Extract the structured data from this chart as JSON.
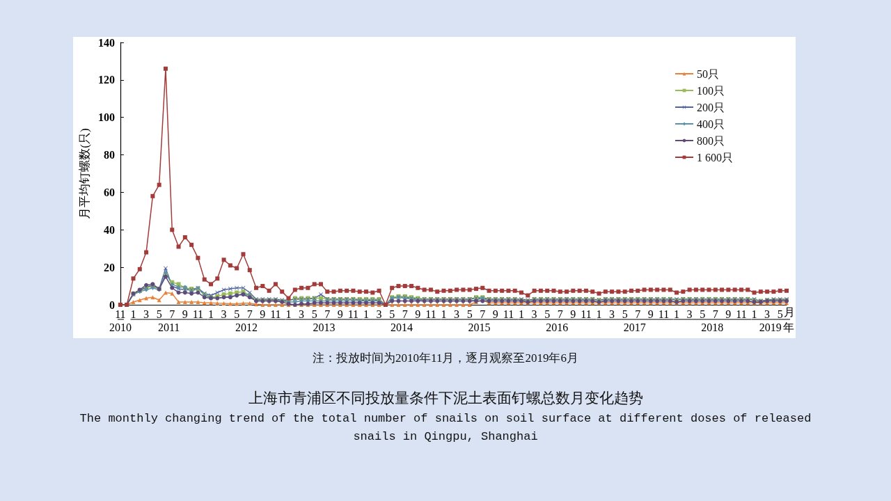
{
  "chart_data": {
    "type": "line",
    "title": "上海市青浦区不同投放量条件下泥土表面钉螺总数月变化趋势",
    "subtitle": "The monthly changing trend of the total number of snails on soil surface at different doses of released snails in Qingpu, Shanghai",
    "ylabel": "月平均钉螺数(只)",
    "xlabel": "月",
    "annotations": [
      "2010",
      "2011",
      "2012",
      "2013",
      "2014",
      "2015",
      "2016",
      "2017",
      "2018",
      "2019",
      "年",
      "注：投放时间为2010年11月，逐月观察至2019年6月"
    ],
    "categories": [
      "11",
      null,
      "1",
      null,
      "3",
      null,
      "5",
      null,
      "7",
      null,
      "9",
      null,
      "11",
      null,
      "1",
      null,
      "3",
      null,
      "5",
      null,
      "7",
      null,
      "9",
      null,
      "11",
      null,
      "1",
      null,
      "3",
      null,
      "5",
      null,
      "7",
      null,
      "9",
      null,
      "11",
      null,
      "1",
      null,
      "3",
      null,
      "5",
      null,
      "7",
      null,
      "9",
      null,
      "11",
      null,
      "1",
      null,
      "3",
      null,
      "5",
      null,
      "7",
      null,
      "9",
      null,
      "11",
      null,
      "1",
      null,
      "3",
      null,
      "5",
      null,
      "7",
      null,
      "9",
      null,
      "11",
      null,
      "1",
      null,
      "3",
      null,
      "5",
      null,
      "7",
      null,
      "9",
      null,
      "11",
      null,
      "1",
      null,
      "3",
      null,
      "5",
      null,
      "7",
      null,
      "9",
      null,
      "11",
      null,
      "1",
      null,
      "3",
      null,
      "5",
      null
    ],
    "series": [
      {
        "name": "50只",
        "color": "#e8823a",
        "marker": "triangle",
        "values": [
          0,
          0,
          1.5,
          2.5,
          3.5,
          4,
          2.5,
          6.5,
          6,
          1.5,
          1.5,
          1.5,
          1.5,
          1,
          1,
          0.8,
          0.7,
          0.6,
          0.6,
          0.8,
          0.8,
          0.3,
          0,
          0,
          0,
          0,
          0,
          0,
          0,
          0,
          0,
          0,
          0,
          0,
          0,
          0,
          0,
          0,
          0,
          0,
          0,
          0,
          0,
          0,
          0,
          0,
          0,
          0,
          0,
          0,
          0,
          0,
          0,
          0,
          0,
          1.5,
          2.5,
          1,
          1,
          1,
          1,
          1,
          1,
          1,
          1,
          1,
          1,
          1,
          1,
          1,
          1,
          1,
          1,
          1,
          1,
          1,
          1,
          1,
          1,
          1,
          1,
          1,
          1,
          1,
          1,
          1,
          1,
          1,
          1,
          1,
          1,
          1,
          1,
          1,
          1,
          1,
          1,
          1,
          1,
          1,
          1,
          1,
          1,
          1
        ]
      },
      {
        "name": "100只",
        "color": "#9bbb59",
        "marker": "square",
        "values": [
          0,
          0,
          6,
          7.5,
          9,
          10,
          8.5,
          16,
          12,
          11,
          9,
          8.5,
          8.5,
          5.5,
          4,
          4.5,
          5.5,
          6,
          6.5,
          7,
          5,
          2.5,
          2.5,
          2.5,
          2.5,
          2,
          2,
          3.5,
          3.5,
          3.5,
          3.5,
          3.5,
          3,
          3,
          3,
          3,
          3,
          3,
          3,
          3,
          3,
          0,
          4,
          4.5,
          4.5,
          4,
          3.5,
          3,
          3,
          3,
          3,
          3,
          3,
          3,
          3,
          4,
          4,
          3,
          3,
          3,
          3,
          3,
          2.5,
          2,
          3,
          3,
          3,
          3,
          3,
          3,
          3,
          3,
          3,
          3,
          2.5,
          3,
          3,
          3,
          3,
          3,
          3,
          3,
          3,
          3,
          3,
          3,
          2.5,
          3,
          3,
          3,
          3,
          3,
          3,
          3,
          3,
          3,
          3,
          3,
          2.5,
          2,
          2.5,
          2.5,
          2.5,
          2.5
        ]
      },
      {
        "name": "200只",
        "color": "#4f64a0",
        "marker": "cross",
        "values": [
          0,
          0,
          5.5,
          7.5,
          9.5,
          10.5,
          8.5,
          19.5,
          10,
          8.5,
          8,
          8,
          9,
          6,
          5,
          6.5,
          8,
          8.5,
          9,
          9,
          6.5,
          3,
          3,
          3,
          3,
          2.5,
          2.5,
          3,
          3,
          3,
          3.5,
          5.5,
          3,
          3,
          3,
          3,
          3,
          2.5,
          2.5,
          2.5,
          2.5,
          0,
          3.5,
          4,
          4,
          3.5,
          3,
          3,
          3,
          3,
          3,
          3,
          3,
          3,
          3,
          3.5,
          3.5,
          3,
          3,
          3,
          3,
          3,
          3,
          2.5,
          3,
          3,
          3,
          3,
          3,
          3,
          3,
          3,
          3,
          3,
          2.5,
          3,
          3,
          3,
          3,
          3,
          3,
          3,
          3,
          3,
          3,
          3,
          3,
          3,
          3,
          3,
          3,
          3,
          3,
          3,
          3,
          3,
          3,
          3,
          3,
          2,
          2.5,
          3,
          3,
          3
        ]
      },
      {
        "name": "400只",
        "color": "#5a93a8",
        "marker": "diamond",
        "values": [
          0,
          0,
          5.5,
          7,
          8,
          9,
          8,
          17,
          11,
          9.5,
          9.5,
          7,
          9,
          5,
          4,
          3.5,
          4,
          4.5,
          5,
          6,
          5,
          2,
          2,
          2,
          2,
          2,
          1.5,
          1.5,
          2,
          2,
          2,
          2,
          2,
          2,
          2,
          2,
          2,
          2,
          2,
          2,
          2,
          0,
          3.5,
          4,
          3.5,
          3,
          2.5,
          2,
          2,
          2,
          2,
          2,
          2,
          2,
          2,
          2.5,
          3.5,
          2,
          2,
          2,
          2,
          2,
          2,
          1.5,
          2,
          2,
          2,
          2,
          2,
          2,
          2,
          2,
          2,
          2,
          1.5,
          2,
          2,
          2,
          2,
          2,
          2,
          2,
          2,
          2,
          2,
          2,
          1.5,
          2,
          2,
          2,
          2,
          2,
          2,
          2,
          2,
          2,
          2,
          2,
          1.5,
          1.5,
          2,
          2,
          2,
          2
        ]
      },
      {
        "name": "800只",
        "color": "#5f4a7a",
        "marker": "circle",
        "values": [
          0,
          0,
          6,
          8,
          10.5,
          11,
          8.5,
          15,
          9,
          6.5,
          6.5,
          6,
          6.5,
          4,
          3.5,
          3.5,
          4,
          4,
          5,
          5.5,
          4,
          2,
          2,
          2,
          2,
          1.5,
          0.5,
          0,
          0.5,
          0.5,
          1,
          1,
          1,
          1,
          1,
          1,
          1,
          1,
          1,
          1,
          1,
          0,
          2,
          2,
          2,
          2,
          2,
          2,
          2,
          2,
          2,
          2,
          2,
          2,
          2,
          2,
          2,
          2,
          2,
          2,
          2,
          2,
          2,
          1.5,
          2,
          2,
          2,
          2,
          2,
          2,
          2,
          2,
          2,
          2,
          1.5,
          2,
          2,
          2,
          2,
          2,
          2,
          2,
          2,
          2,
          2,
          2,
          1.5,
          2,
          2,
          2,
          2,
          2,
          2,
          2,
          2,
          2,
          2,
          2,
          1.5,
          1.5,
          2,
          2,
          2,
          2
        ]
      },
      {
        "name": "1 600只",
        "color": "#a23b3a",
        "marker": "square",
        "values": [
          0,
          0,
          14,
          19,
          28,
          58,
          64,
          126,
          40,
          31,
          36,
          32,
          25,
          13.5,
          11,
          14,
          24,
          21,
          19.5,
          27,
          18.5,
          9,
          10,
          7.5,
          11,
          7,
          3.5,
          8,
          9,
          9,
          11,
          11,
          7,
          7,
          7.5,
          7.5,
          7.5,
          7,
          7,
          6.5,
          7.5,
          0,
          9,
          10,
          10,
          10,
          9,
          8,
          8,
          7,
          7.5,
          7.5,
          8,
          8,
          8,
          8.5,
          9,
          7.5,
          7.5,
          7.5,
          7.5,
          7.5,
          6.5,
          5,
          7.5,
          7.5,
          7.5,
          7.5,
          7,
          7,
          7.5,
          7.5,
          7.5,
          7,
          6,
          7,
          7,
          7,
          7,
          7.5,
          7.5,
          8,
          8,
          8,
          8,
          8,
          6.5,
          7,
          8,
          8,
          8,
          8,
          8,
          8,
          8,
          8,
          8,
          8,
          6.5,
          7,
          7,
          7,
          7.5,
          7.5
        ]
      }
    ],
    "ylim": [
      0,
      140
    ],
    "yticks": [
      0,
      20,
      40,
      60,
      80,
      100,
      120,
      140
    ],
    "legend": "top right",
    "grid": false,
    "line_style": "solid"
  }
}
